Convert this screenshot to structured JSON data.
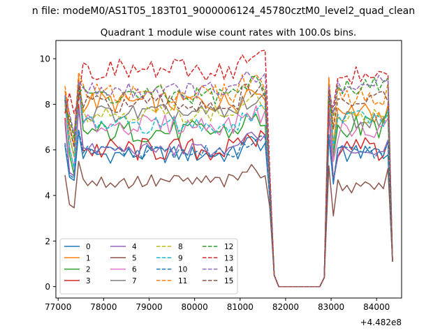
{
  "chart_data": {
    "type": "line",
    "suptitle": "n file: modeM0/AS1T05_183T01_9000006124_45780cztM0_level2_quad_clean",
    "title": "Quadrant 1 module wise count rates with 100.0s bins.",
    "xlabel": "",
    "ylabel": "",
    "x_offset_label": "+4.482e8",
    "xlim": [
      76950,
      84550
    ],
    "ylim": [
      -0.5,
      10.8
    ],
    "xticks": [
      77000,
      78000,
      79000,
      80000,
      81000,
      82000,
      83000,
      84000
    ],
    "xtick_labels": [
      "77000",
      "78000",
      "79000",
      "80000",
      "81000",
      "82000",
      "83000",
      "84000"
    ],
    "yticks": [
      0,
      2,
      4,
      6,
      8,
      10
    ],
    "ytick_labels": [
      "0",
      "2",
      "4",
      "6",
      "8",
      "10"
    ],
    "grid": false,
    "legend_position": "lower-left",
    "legend_columns": 4,
    "series": [
      {
        "name": "0",
        "color": "#1f77b4",
        "dash": "solid",
        "base": 5.8,
        "start": 6.2,
        "amp": 0.4,
        "seg2": 5.8
      },
      {
        "name": "1",
        "color": "#ff7f0e",
        "dash": "solid",
        "base": 8.1,
        "start": 8.6,
        "amp": 0.5,
        "seg2": 7.6
      },
      {
        "name": "2",
        "color": "#2ca02c",
        "dash": "solid",
        "base": 6.8,
        "start": 8.2,
        "amp": 0.5,
        "seg2": 7.0
      },
      {
        "name": "3",
        "color": "#d62728",
        "dash": "solid",
        "base": 6.0,
        "start": 7.4,
        "amp": 0.55,
        "seg2": 6.0
      },
      {
        "name": "4",
        "color": "#9467bd",
        "dash": "solid",
        "base": 6.0,
        "start": 7.2,
        "amp": 0.3,
        "seg2": 5.9
      },
      {
        "name": "5",
        "color": "#8c564b",
        "dash": "solid",
        "base": 4.6,
        "start": 4.9,
        "amp": 0.35,
        "seg2": 4.4
      },
      {
        "name": "6",
        "color": "#e377c2",
        "dash": "solid",
        "base": 7.1,
        "start": 8.0,
        "amp": 0.45,
        "seg2": 6.8
      },
      {
        "name": "7",
        "color": "#7f7f7f",
        "dash": "solid",
        "base": 7.6,
        "start": 8.4,
        "amp": 0.4,
        "seg2": 7.3
      },
      {
        "name": "8",
        "color": "#bcbd22",
        "dash": "dashed",
        "base": 7.6,
        "start": 8.0,
        "amp": 0.4,
        "seg2": 7.5
      },
      {
        "name": "9",
        "color": "#17becf",
        "dash": "dashed",
        "base": 7.1,
        "start": 8.3,
        "amp": 0.4,
        "seg2": 7.4
      },
      {
        "name": "10",
        "color": "#1f77b4",
        "dash": "dashed",
        "base": 5.9,
        "start": 6.3,
        "amp": 0.3,
        "seg2": 5.9
      },
      {
        "name": "11",
        "color": "#ff7f0e",
        "dash": "dashed",
        "base": 8.5,
        "start": 8.8,
        "amp": 0.45,
        "seg2": 8.3
      },
      {
        "name": "12",
        "color": "#2ca02c",
        "dash": "dashed",
        "base": 8.4,
        "start": 7.8,
        "amp": 0.45,
        "seg2": 8.8
      },
      {
        "name": "13",
        "color": "#d62728",
        "dash": "dashed",
        "base": 9.5,
        "start": 7.6,
        "amp": 0.5,
        "seg2": 9.2
      },
      {
        "name": "14",
        "color": "#9467bd",
        "dash": "dashed",
        "base": 8.6,
        "start": 8.4,
        "amp": 0.4,
        "seg2": 8.9
      },
      {
        "name": "15",
        "color": "#8c564b",
        "dash": "dashed",
        "base": 8.0,
        "start": 8.2,
        "amp": 0.4,
        "seg2": 8.2
      }
    ]
  }
}
